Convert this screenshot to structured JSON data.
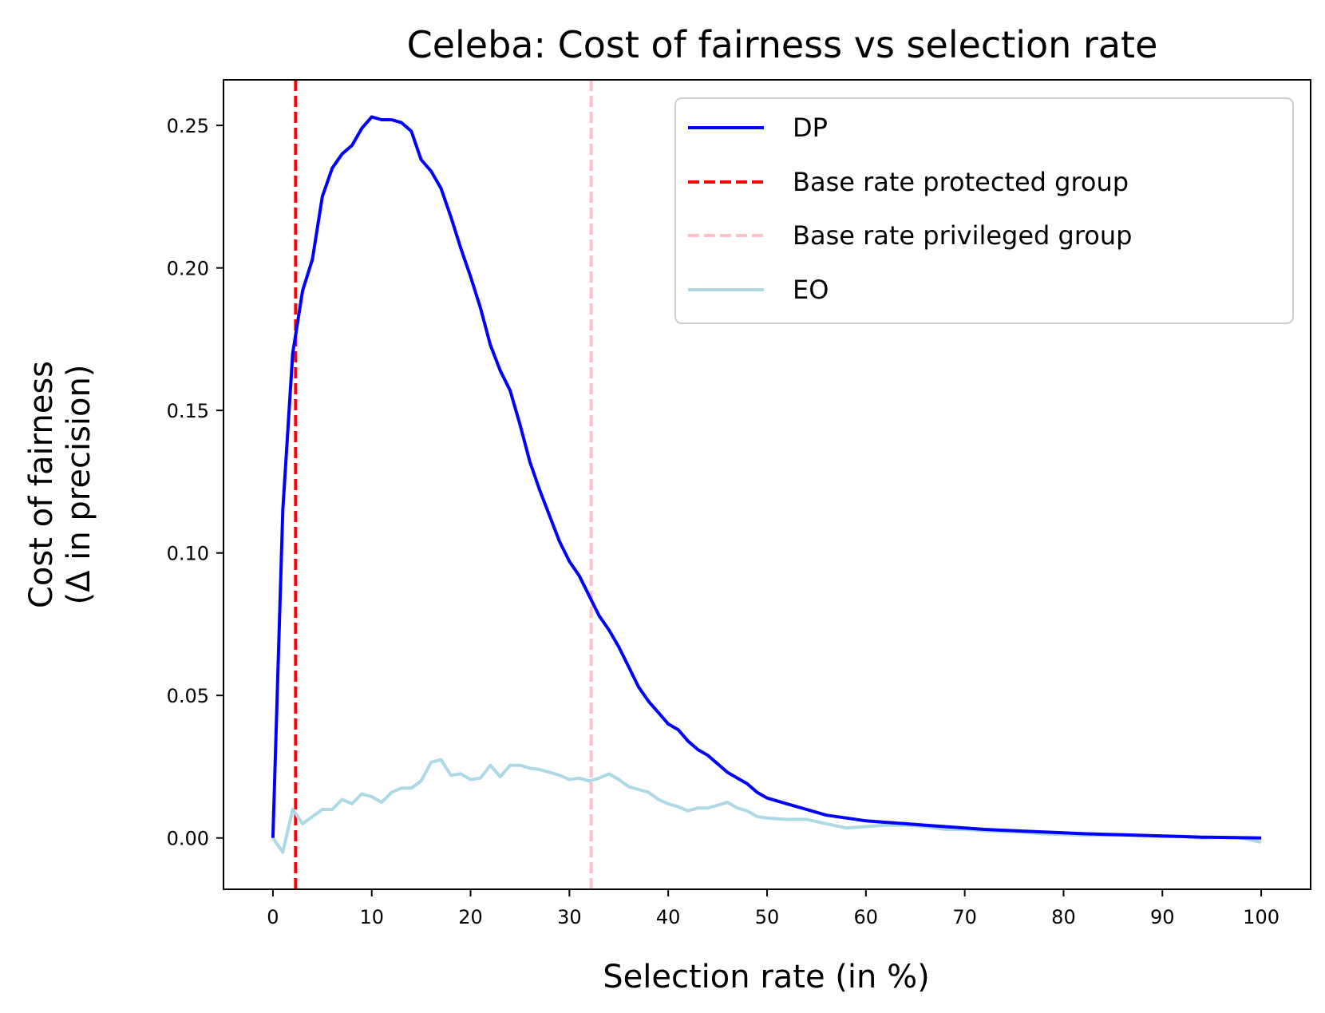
{
  "chart_data": {
    "type": "line",
    "title": "Celeba: Cost of fairness vs selection rate",
    "xlabel": "Selection rate (in %)",
    "ylabel_line1": "Cost of fairness",
    "ylabel_line2": "(Δ in precision)",
    "xlim": [
      -5,
      105
    ],
    "ylim": [
      -0.018,
      0.266
    ],
    "xticks": [
      0,
      10,
      20,
      30,
      40,
      50,
      60,
      70,
      80,
      90,
      100
    ],
    "yticks": [
      0.0,
      0.05,
      0.1,
      0.15,
      0.2,
      0.25
    ],
    "xtick_labels": [
      "0",
      "10",
      "20",
      "30",
      "40",
      "50",
      "60",
      "70",
      "80",
      "90",
      "100"
    ],
    "ytick_labels": [
      "0.00",
      "0.05",
      "0.10",
      "0.15",
      "0.20",
      "0.25"
    ],
    "legend_position": "top-right",
    "series": [
      {
        "name": "DP",
        "color": "#0000ff",
        "style": "solid",
        "x": [
          0,
          1,
          2,
          3,
          4,
          5,
          6,
          7,
          8,
          9,
          10,
          11,
          12,
          13,
          14,
          15,
          16,
          17,
          18,
          19,
          20,
          21,
          22,
          23,
          24,
          25,
          26,
          27,
          28,
          29,
          30,
          31,
          32,
          33,
          34,
          35,
          36,
          37,
          38,
          39,
          40,
          41,
          42,
          43,
          44,
          45,
          46,
          47,
          48,
          49,
          50,
          52,
          54,
          56,
          58,
          60,
          62,
          64,
          66,
          68,
          70,
          72,
          74,
          76,
          78,
          80,
          82,
          84,
          86,
          88,
          90,
          92,
          94,
          96,
          98,
          100
        ],
        "values": [
          0.0,
          0.115,
          0.17,
          0.192,
          0.203,
          0.225,
          0.235,
          0.24,
          0.243,
          0.249,
          0.253,
          0.252,
          0.252,
          0.251,
          0.248,
          0.238,
          0.234,
          0.228,
          0.218,
          0.207,
          0.197,
          0.186,
          0.173,
          0.164,
          0.157,
          0.145,
          0.132,
          0.122,
          0.113,
          0.104,
          0.097,
          0.092,
          0.085,
          0.078,
          0.073,
          0.067,
          0.06,
          0.053,
          0.048,
          0.044,
          0.04,
          0.038,
          0.034,
          0.031,
          0.029,
          0.026,
          0.023,
          0.021,
          0.019,
          0.016,
          0.014,
          0.012,
          0.01,
          0.008,
          0.007,
          0.006,
          0.0055,
          0.005,
          0.0045,
          0.004,
          0.0035,
          0.003,
          0.0027,
          0.0024,
          0.0021,
          0.0018,
          0.0015,
          0.0013,
          0.0011,
          0.0009,
          0.0007,
          0.0005,
          0.0003,
          0.0002,
          0.0001,
          0.0
        ]
      },
      {
        "name": "Base rate protected group",
        "color": "#ff0000",
        "style": "dashed",
        "vline_x": 2.3
      },
      {
        "name": "Base rate privileged group",
        "color": "#ffc0cb",
        "style": "dashed",
        "vline_x": 32.2
      },
      {
        "name": "EO",
        "color": "#add8e6",
        "style": "solid",
        "x": [
          0,
          1,
          2,
          3,
          4,
          5,
          6,
          7,
          8,
          9,
          10,
          11,
          12,
          13,
          14,
          15,
          16,
          17,
          18,
          19,
          20,
          21,
          22,
          23,
          24,
          25,
          26,
          27,
          28,
          29,
          30,
          31,
          32,
          33,
          34,
          35,
          36,
          37,
          38,
          39,
          40,
          41,
          42,
          43,
          44,
          45,
          46,
          47,
          48,
          49,
          50,
          52,
          54,
          56,
          58,
          60,
          62,
          64,
          66,
          68,
          70,
          72,
          74,
          76,
          78,
          80,
          82,
          84,
          86,
          88,
          90,
          92,
          94,
          96,
          98,
          100
        ],
        "values": [
          0.0,
          -0.005,
          0.01,
          0.005,
          0.0075,
          0.01,
          0.01,
          0.0135,
          0.012,
          0.0155,
          0.0145,
          0.0125,
          0.016,
          0.0175,
          0.0175,
          0.02,
          0.0265,
          0.0275,
          0.022,
          0.0225,
          0.0205,
          0.021,
          0.0255,
          0.0215,
          0.0255,
          0.0255,
          0.0245,
          0.024,
          0.023,
          0.022,
          0.0205,
          0.021,
          0.02,
          0.021,
          0.0225,
          0.0205,
          0.018,
          0.017,
          0.016,
          0.0135,
          0.012,
          0.011,
          0.0095,
          0.0105,
          0.0105,
          0.0115,
          0.0125,
          0.0105,
          0.0095,
          0.0075,
          0.007,
          0.0065,
          0.0065,
          0.005,
          0.0035,
          0.004,
          0.0045,
          0.0045,
          0.004,
          0.003,
          0.003,
          0.0025,
          0.0022,
          0.002,
          0.0015,
          0.0012,
          0.001,
          0.001,
          0.001,
          0.0008,
          0.0005,
          0.0005,
          0.0,
          0.0002,
          0.0,
          -0.0015
        ]
      }
    ]
  }
}
